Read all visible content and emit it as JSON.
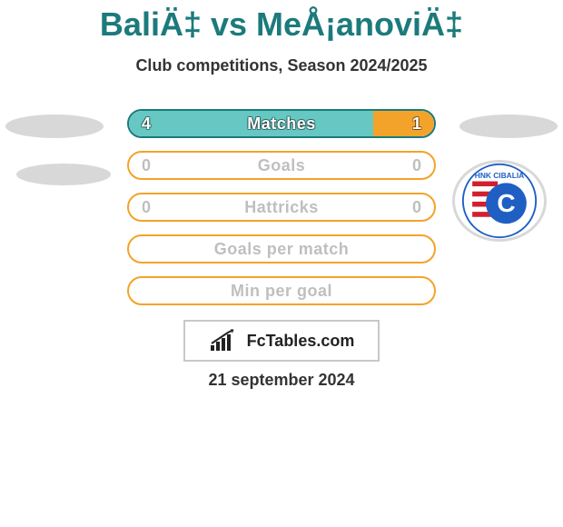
{
  "title": "BaliÄ‡ vs MeÅ¡anoviÄ‡",
  "subtitle": "Club competitions, Season 2024/2025",
  "date": "21 september 2024",
  "brand": "FcTables.com",
  "colors": {
    "teal_dark": "#1c7a7c",
    "teal_light": "#66c7c3",
    "orange": "#f3a32a",
    "row_bg": "#ffffff"
  },
  "rows": [
    {
      "label": "Matches",
      "left_val": "4",
      "right_val": "1",
      "left_pct": 80,
      "right_pct": 20,
      "left_color": "#66c7c3",
      "right_color": "#f3a32a",
      "border_color": "#1c7a7c"
    },
    {
      "label": "Goals",
      "left_val": "0",
      "right_val": "0",
      "left_pct": 0,
      "right_pct": 0,
      "left_color": "#66c7c3",
      "right_color": "#f3a32a",
      "border_color": "#f3a32a"
    },
    {
      "label": "Hattricks",
      "left_val": "0",
      "right_val": "0",
      "left_pct": 0,
      "right_pct": 0,
      "left_color": "#66c7c3",
      "right_color": "#f3a32a",
      "border_color": "#f3a32a"
    },
    {
      "label": "Goals per match",
      "left_val": "",
      "right_val": "",
      "left_pct": 0,
      "right_pct": 0,
      "left_color": "#66c7c3",
      "right_color": "#f3a32a",
      "border_color": "#f3a32a"
    },
    {
      "label": "Min per goal",
      "left_val": "",
      "right_val": "",
      "left_pct": 0,
      "right_pct": 0,
      "left_color": "#66c7c3",
      "right_color": "#f3a32a",
      "border_color": "#f3a32a"
    }
  ],
  "right_club_logo": {
    "text_top": "HNK CIBALIA",
    "stripe_colors": [
      "#d11f2e",
      "#ffffff"
    ],
    "c_bg": "#1f5fc4",
    "c_text": "C"
  }
}
